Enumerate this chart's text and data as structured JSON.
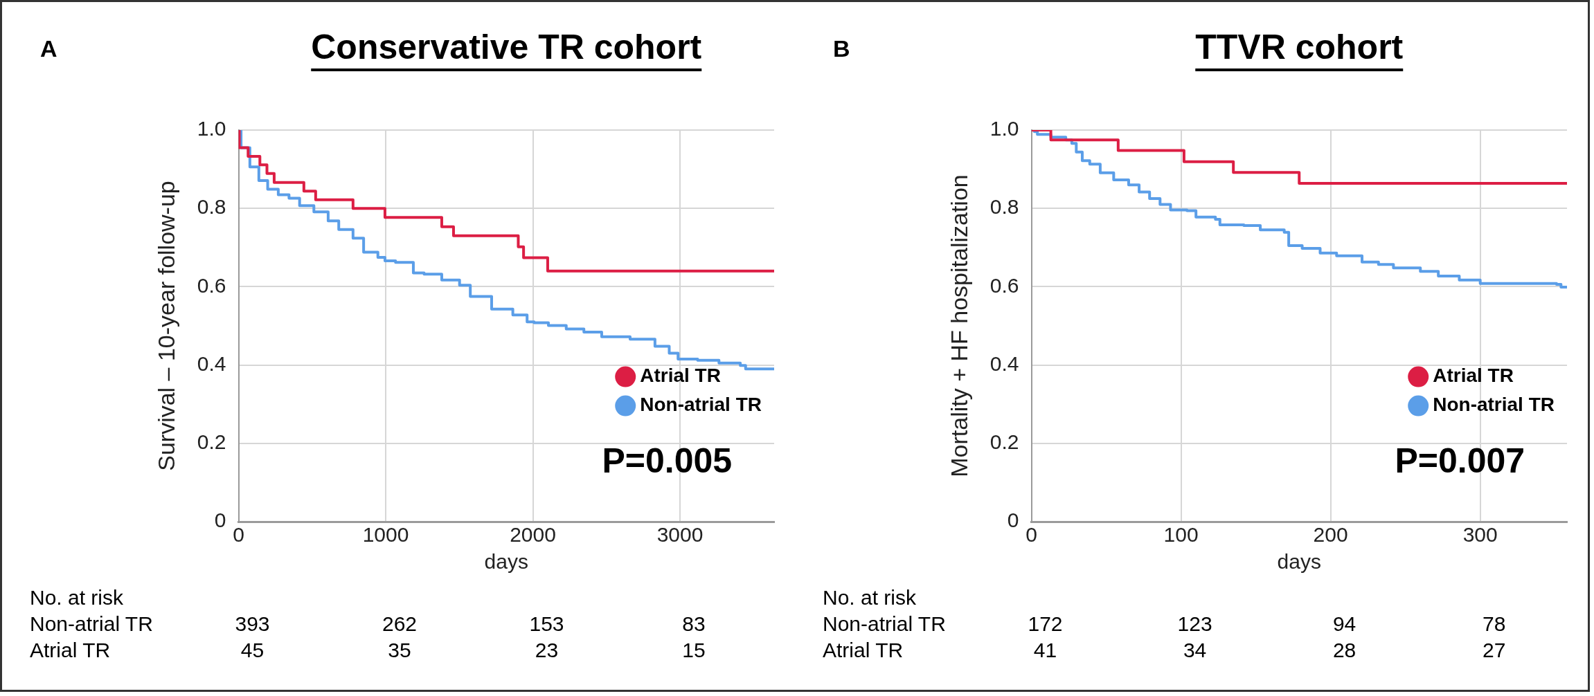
{
  "chart_data": [
    {
      "type": "step",
      "title": "Conservative TR cohort",
      "xlabel": "days",
      "ylabel": "Survival – 10-year follow-up",
      "xlim": [
        0,
        3640
      ],
      "xticks": [
        0,
        1000,
        2000,
        3000
      ],
      "ylim": [
        0,
        1
      ],
      "yticks": [
        {
          "value": 1,
          "label": "1.0"
        },
        0.8,
        0.6,
        0.4,
        0.2,
        0
      ],
      "grid": true,
      "legend": "bottom right",
      "marker": "none",
      "line_style": "solid",
      "series": [
        {
          "name": "Atrial TR",
          "color": "#dc1e44",
          "x": [
            0,
            5,
            65,
            145,
            193,
            242,
            444,
            524,
            778,
            995,
            1381,
            1461,
            1901,
            1937,
            2101,
            3640
          ],
          "values": [
            1.0,
            0.955,
            0.933,
            0.911,
            0.889,
            0.866,
            0.844,
            0.822,
            0.8,
            0.777,
            0.753,
            0.73,
            0.702,
            0.674,
            0.64,
            0.64
          ]
        },
        {
          "name": "Non-atrial TR",
          "color": "#5b9ee8",
          "x": [
            0,
            17,
            77,
            138,
            198,
            270,
            343,
            415,
            512,
            609,
            681,
            778,
            850,
            947,
            995,
            1067,
            1188,
            1261,
            1381,
            1502,
            1575,
            1720,
            1864,
            1961,
            2009,
            2106,
            2227,
            2347,
            2468,
            2661,
            2830,
            2927,
            2987,
            3120,
            3265,
            3410,
            3446,
            3640
          ],
          "values": [
            1.0,
            0.955,
            0.906,
            0.871,
            0.849,
            0.835,
            0.826,
            0.807,
            0.791,
            0.768,
            0.746,
            0.724,
            0.688,
            0.675,
            0.666,
            0.662,
            0.635,
            0.632,
            0.617,
            0.604,
            0.575,
            0.543,
            0.528,
            0.51,
            0.508,
            0.501,
            0.492,
            0.484,
            0.472,
            0.466,
            0.448,
            0.43,
            0.415,
            0.412,
            0.405,
            0.399,
            0.39,
            0.39
          ]
        }
      ],
      "annotations": [
        "A",
        "P=0.005",
        "No. at risk",
        "Non-atrial TR",
        "393",
        "262",
        "153",
        "83",
        "Atrial TR",
        "45",
        "35",
        "23",
        "15"
      ]
    },
    {
      "type": "step",
      "title": "TTVR cohort",
      "xlabel": "days",
      "ylabel": "Mortality + HF hospitalization",
      "xlim": [
        0,
        358
      ],
      "xticks": [
        0,
        100,
        200,
        300
      ],
      "ylim": [
        0,
        1
      ],
      "yticks": [
        {
          "value": 1,
          "label": "1.0"
        },
        0.8,
        0.6,
        0.4,
        0.2,
        0
      ],
      "grid": true,
      "legend": "bottom right",
      "marker": "none",
      "line_style": "solid",
      "series": [
        {
          "name": "Atrial TR",
          "color": "#dc1e44",
          "x": [
            0,
            13,
            58,
            102,
            135,
            179,
            358
          ],
          "values": [
            1.0,
            0.975,
            0.948,
            0.919,
            0.892,
            0.864,
            0.864
          ]
        },
        {
          "name": "Non-atrial TR",
          "color": "#5b9ee8",
          "x": [
            0,
            2,
            4,
            13,
            23,
            27,
            30,
            34,
            39,
            46,
            55,
            65,
            72,
            79,
            86,
            93,
            104,
            110,
            123,
            126,
            142,
            153,
            169,
            172,
            181,
            193,
            204,
            221,
            232,
            242,
            260,
            272,
            286,
            300,
            351,
            354,
            358
          ],
          "values": [
            1.0,
            0.996,
            0.989,
            0.982,
            0.975,
            0.966,
            0.944,
            0.922,
            0.913,
            0.891,
            0.873,
            0.86,
            0.842,
            0.825,
            0.81,
            0.796,
            0.794,
            0.778,
            0.772,
            0.758,
            0.756,
            0.745,
            0.739,
            0.705,
            0.698,
            0.686,
            0.679,
            0.663,
            0.657,
            0.648,
            0.639,
            0.627,
            0.617,
            0.608,
            0.606,
            0.599,
            0.599
          ]
        }
      ],
      "annotations": [
        "B",
        "P=0.007",
        "No. at risk",
        "Non-atrial TR",
        "172",
        "123",
        "94",
        "78",
        "Atrial TR",
        "41",
        "34",
        "28",
        "27"
      ]
    }
  ]
}
